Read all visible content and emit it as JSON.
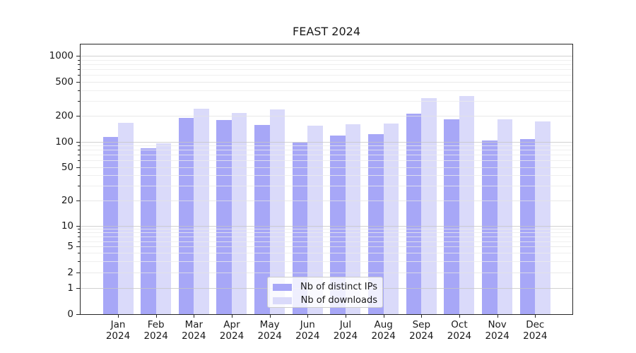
{
  "chart_data": {
    "type": "bar",
    "title": "FEAST 2024",
    "categories": [
      "Jan 2024",
      "Feb 2024",
      "Mar 2024",
      "Apr 2024",
      "May 2024",
      "Jun 2024",
      "Jul 2024",
      "Aug 2024",
      "Sep 2024",
      "Oct 2024",
      "Nov 2024",
      "Dec 2024"
    ],
    "x_tick_line1": [
      "Jan",
      "Feb",
      "Mar",
      "Apr",
      "May",
      "Jun",
      "Jul",
      "Aug",
      "Sep",
      "Oct",
      "Nov",
      "Dec"
    ],
    "x_tick_line2": "2024",
    "series": [
      {
        "name": "Nb of distinct IPs",
        "color": "#a7a7f7",
        "values": [
          115,
          85,
          193,
          183,
          158,
          99,
          120,
          124,
          215,
          185,
          105,
          108
        ]
      },
      {
        "name": "Nb of downloads",
        "color": "#dadafa",
        "values": [
          170,
          97,
          247,
          220,
          243,
          155,
          163,
          165,
          330,
          345,
          184,
          175
        ]
      }
    ],
    "yscale": "symlog",
    "y_ticks": [
      1000,
      500,
      200,
      100,
      50,
      20,
      10,
      5,
      2,
      1,
      0
    ],
    "ylim": [
      0,
      1400
    ],
    "grid": "both",
    "legend_position": "lower center",
    "colors": {
      "major_decade_grid": "#c5c5c5",
      "minor_grid": "#ebebeb",
      "labeled_sub_grid": "#e3e3e3",
      "spine": "#262626"
    }
  }
}
